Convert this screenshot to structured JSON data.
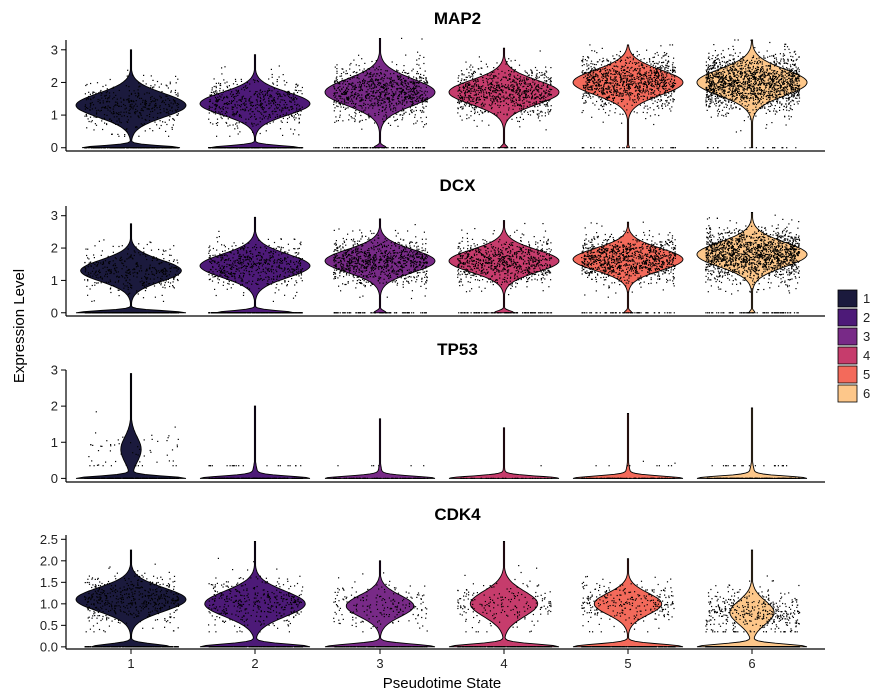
{
  "chart_data": {
    "type": "violin",
    "xlabel": "Pseudotime State",
    "ylabel": "Expression Level",
    "categories": [
      "1",
      "2",
      "3",
      "4",
      "5",
      "6"
    ],
    "legend": {
      "position": "right",
      "entries": [
        "1",
        "2",
        "3",
        "4",
        "5",
        "6"
      ]
    },
    "colors": [
      "#1b1a3d",
      "#4d1a78",
      "#782a87",
      "#c63c6c",
      "#f36a5b",
      "#fdc78a"
    ],
    "grid": false,
    "panels": [
      {
        "gene": "MAP2",
        "ylim": [
          -0.1,
          3.3
        ],
        "yticks": [
          0,
          1,
          2,
          3
        ],
        "ytick_labels": [
          "0",
          "1",
          "2",
          "3"
        ],
        "violins": [
          {
            "state": "1",
            "mode": 1.3,
            "max": 3.0,
            "zero_fraction": 0.4,
            "point_count": 700
          },
          {
            "state": "2",
            "mode": 1.35,
            "max": 2.85,
            "zero_fraction": 0.38,
            "point_count": 900
          },
          {
            "state": "3",
            "mode": 1.7,
            "max": 3.35,
            "zero_fraction": 0.08,
            "point_count": 1000
          },
          {
            "state": "4",
            "mode": 1.7,
            "max": 3.05,
            "zero_fraction": 0.05,
            "point_count": 900
          },
          {
            "state": "5",
            "mode": 2.0,
            "max": 3.15,
            "zero_fraction": 0.02,
            "point_count": 1100
          },
          {
            "state": "6",
            "mode": 2.0,
            "max": 3.3,
            "zero_fraction": 0.01,
            "point_count": 1700
          }
        ]
      },
      {
        "gene": "DCX",
        "ylim": [
          -0.1,
          3.3
        ],
        "yticks": [
          0,
          1,
          2,
          3
        ],
        "ytick_labels": [
          "0",
          "1",
          "2",
          "3"
        ],
        "violins": [
          {
            "state": "1",
            "mode": 1.3,
            "max": 2.75,
            "zero_fraction": 0.45,
            "point_count": 700
          },
          {
            "state": "2",
            "mode": 1.45,
            "max": 2.95,
            "zero_fraction": 0.35,
            "point_count": 900
          },
          {
            "state": "3",
            "mode": 1.6,
            "max": 2.9,
            "zero_fraction": 0.08,
            "point_count": 1000
          },
          {
            "state": "4",
            "mode": 1.6,
            "max": 2.85,
            "zero_fraction": 0.12,
            "point_count": 900
          },
          {
            "state": "5",
            "mode": 1.65,
            "max": 2.8,
            "zero_fraction": 0.05,
            "point_count": 1100
          },
          {
            "state": "6",
            "mode": 1.8,
            "max": 3.1,
            "zero_fraction": 0.04,
            "point_count": 1700
          }
        ]
      },
      {
        "gene": "TP53",
        "ylim": [
          -0.1,
          3.0
        ],
        "yticks": [
          0,
          1,
          2,
          3
        ],
        "ytick_labels": [
          "0",
          "1",
          "2",
          "3"
        ],
        "violins": [
          {
            "state": "1",
            "mode": 0.8,
            "max": 2.9,
            "zero_fraction": 0.8,
            "point_count": 300
          },
          {
            "state": "2",
            "mode": 0.0,
            "max": 2.0,
            "zero_fraction": 0.92,
            "point_count": 250
          },
          {
            "state": "3",
            "mode": 0.0,
            "max": 1.65,
            "zero_fraction": 0.94,
            "point_count": 120
          },
          {
            "state": "4",
            "mode": 0.0,
            "max": 1.4,
            "zero_fraction": 0.97,
            "point_count": 50
          },
          {
            "state": "5",
            "mode": 0.0,
            "max": 1.8,
            "zero_fraction": 0.93,
            "point_count": 150
          },
          {
            "state": "6",
            "mode": 0.0,
            "max": 1.95,
            "zero_fraction": 0.92,
            "point_count": 250
          }
        ]
      },
      {
        "gene": "CDK4",
        "ylim": [
          -0.05,
          2.6
        ],
        "yticks": [
          0,
          0.5,
          1.0,
          1.5,
          2.0,
          2.5
        ],
        "ytick_labels": [
          "0.0",
          "0.5",
          "1.0",
          "1.5",
          "2.0",
          "2.5"
        ],
        "violins": [
          {
            "state": "1",
            "mode": 1.1,
            "max": 2.25,
            "zero_fraction": 0.35,
            "point_count": 800
          },
          {
            "state": "2",
            "mode": 1.0,
            "max": 2.45,
            "zero_fraction": 0.45,
            "point_count": 700
          },
          {
            "state": "3",
            "mode": 0.95,
            "max": 2.0,
            "zero_fraction": 0.55,
            "point_count": 450
          },
          {
            "state": "4",
            "mode": 1.0,
            "max": 2.45,
            "zero_fraction": 0.55,
            "point_count": 450
          },
          {
            "state": "5",
            "mode": 1.0,
            "max": 2.05,
            "zero_fraction": 0.55,
            "point_count": 650
          },
          {
            "state": "6",
            "mode": 0.8,
            "max": 2.25,
            "zero_fraction": 0.65,
            "point_count": 1200
          }
        ]
      }
    ]
  }
}
